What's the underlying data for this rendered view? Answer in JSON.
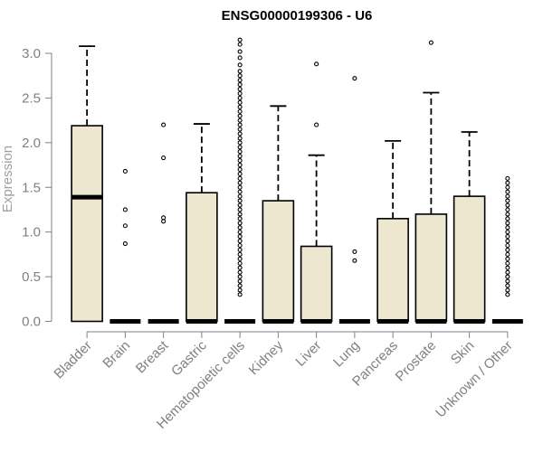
{
  "chart_data": {
    "type": "boxplot",
    "title": "ENSG00000199306 - U6",
    "ylabel": "Expression",
    "xlabel": "",
    "ylim": [
      0,
      3.15
    ],
    "yticks": [
      0.0,
      0.5,
      1.0,
      1.5,
      2.0,
      2.5,
      3.0
    ],
    "ytick_labels": [
      "0.0",
      "0.5",
      "1.0",
      "1.5",
      "2.0",
      "2.5",
      "3.0"
    ],
    "box_color": "#ede7d0",
    "categories": [
      "Bladder",
      "Brain",
      "Breast",
      "Gastric",
      "Hematopoietic cells",
      "Kidney",
      "Liver",
      "Lung",
      "Pancreas",
      "Prostate",
      "Skin",
      "Unknown / Other"
    ],
    "boxes": [
      {
        "q1": 0,
        "median": 1.39,
        "q3": 2.19,
        "whisker_low": 0,
        "whisker_high": 3.08,
        "outliers": []
      },
      {
        "q1": 0,
        "median": 0,
        "q3": 0,
        "whisker_low": 0,
        "whisker_high": 0,
        "outliers": [
          0.87,
          1.07,
          1.25,
          1.68
        ]
      },
      {
        "q1": 0,
        "median": 0,
        "q3": 0,
        "whisker_low": 0,
        "whisker_high": 0,
        "outliers": [
          1.12,
          1.16,
          1.83,
          2.2
        ]
      },
      {
        "q1": 0,
        "median": 0,
        "q3": 1.44,
        "whisker_low": 0,
        "whisker_high": 2.21,
        "outliers": []
      },
      {
        "q1": 0,
        "median": 0,
        "q3": 0,
        "whisker_low": 0,
        "whisker_high": 0,
        "outliers": [
          0.3,
          0.35,
          0.4,
          0.45,
          0.5,
          0.55,
          0.6,
          0.65,
          0.7,
          0.75,
          0.8,
          0.85,
          0.9,
          0.95,
          1.0,
          1.05,
          1.1,
          1.15,
          1.2,
          1.25,
          1.3,
          1.35,
          1.4,
          1.45,
          1.5,
          1.55,
          1.6,
          1.65,
          1.7,
          1.75,
          1.8,
          1.85,
          1.9,
          1.95,
          2.0,
          2.05,
          2.1,
          2.15,
          2.2,
          2.25,
          2.3,
          2.35,
          2.4,
          2.45,
          2.5,
          2.55,
          2.6,
          2.65,
          2.7,
          2.75,
          2.8,
          2.87,
          2.95,
          3.02,
          3.1,
          3.15
        ]
      },
      {
        "q1": 0,
        "median": 0,
        "q3": 1.35,
        "whisker_low": 0,
        "whisker_high": 2.41,
        "outliers": []
      },
      {
        "q1": 0,
        "median": 0,
        "q3": 0.84,
        "whisker_low": 0,
        "whisker_high": 1.86,
        "outliers": [
          2.2,
          2.88
        ]
      },
      {
        "q1": 0,
        "median": 0,
        "q3": 0,
        "whisker_low": 0,
        "whisker_high": 0,
        "outliers": [
          0.68,
          0.78,
          2.72
        ]
      },
      {
        "q1": 0,
        "median": 0,
        "q3": 1.15,
        "whisker_low": 0,
        "whisker_high": 2.02,
        "outliers": []
      },
      {
        "q1": 0,
        "median": 0,
        "q3": 1.2,
        "whisker_low": 0,
        "whisker_high": 2.56,
        "outliers": [
          3.12
        ]
      },
      {
        "q1": 0,
        "median": 0,
        "q3": 1.4,
        "whisker_low": 0,
        "whisker_high": 2.12,
        "outliers": []
      },
      {
        "q1": 0,
        "median": 0,
        "q3": 0,
        "whisker_low": 0,
        "whisker_high": 0,
        "outliers": [
          0.3,
          0.35,
          0.4,
          0.45,
          0.5,
          0.55,
          0.6,
          0.65,
          0.7,
          0.75,
          0.8,
          0.85,
          0.9,
          0.95,
          1.0,
          1.05,
          1.1,
          1.15,
          1.2,
          1.25,
          1.3,
          1.35,
          1.4,
          1.45,
          1.5,
          1.55,
          1.6
        ]
      }
    ]
  }
}
